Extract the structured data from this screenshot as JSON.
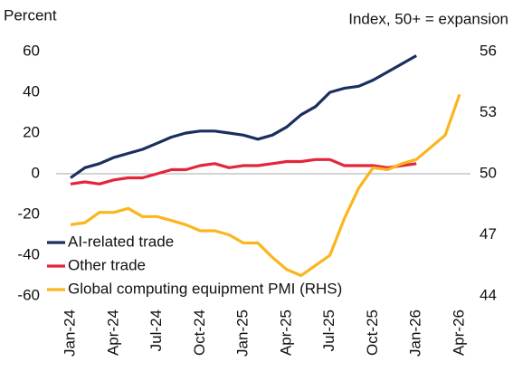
{
  "chart_data": {
    "type": "line",
    "y_label": "Percent",
    "y2_label": "Index, 50+ = expansion",
    "categories": [
      "Jan-24",
      null,
      null,
      "Apr-24",
      null,
      null,
      "Jul-24",
      null,
      null,
      "Oct-24",
      null,
      null,
      "Jan-25",
      null,
      null,
      "Apr-25",
      null,
      null,
      "Jul-25",
      null,
      null,
      "Oct-25",
      null,
      null,
      "Jan-26",
      null,
      null,
      "Apr-26"
    ],
    "ylim": [
      -60,
      60
    ],
    "yticks": [
      -60,
      -40,
      -20,
      0,
      20,
      40,
      60
    ],
    "y2lim": [
      44,
      56
    ],
    "y2ticks": [
      44,
      47,
      50,
      53,
      56
    ],
    "zero_line": true,
    "legend": "lower left",
    "series": [
      {
        "name": "AI-related trade",
        "color": "#1b2f5e",
        "values": [
          -2,
          3,
          5,
          8,
          10,
          12,
          15,
          18,
          20,
          21,
          21,
          20,
          19,
          17,
          19,
          23,
          29,
          33,
          40,
          42,
          43,
          46,
          50,
          54,
          58,
          null,
          null,
          null
        ]
      },
      {
        "name": "Other trade",
        "color": "#e3263c",
        "values": [
          -5,
          -4,
          -5,
          -3,
          -2,
          -2,
          0,
          2,
          2,
          4,
          5,
          3,
          4,
          4,
          5,
          6,
          6,
          7,
          7,
          4,
          4,
          4,
          3,
          4,
          5,
          null,
          null,
          null
        ]
      },
      {
        "name": "Global computing equipment PMI (RHS)",
        "color": "#fbb51d",
        "axis": "y2",
        "values": [
          47.5,
          47.6,
          48.1,
          48.1,
          48.3,
          47.9,
          47.9,
          47.7,
          47.5,
          47.2,
          47.2,
          47.0,
          46.6,
          46.6,
          45.9,
          45.3,
          45.0,
          45.5,
          46.0,
          47.8,
          49.3,
          50.3,
          50.2,
          50.5,
          50.7,
          51.3,
          51.9,
          53.9
        ]
      }
    ]
  }
}
